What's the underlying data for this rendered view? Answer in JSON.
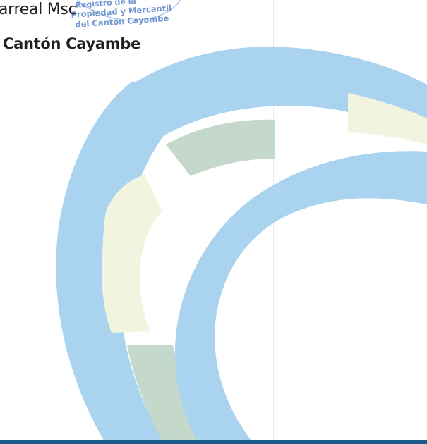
{
  "signature_block": {
    "name_fragment": "arreal Msc",
    "title": "Cantón Cayambe"
  },
  "stamp": {
    "line1": "Registro de la",
    "line2": "Propiedad y Mercantil",
    "line3": "del Cantón Cayambe"
  },
  "colors": {
    "arc_blue": "#a9d3ee",
    "arc_gray_green": "#c5d8cc",
    "arc_pale_yellow": "#f1f5df",
    "stamp_blue": "#5a86c8",
    "footer_bar": "#1a5a8c",
    "text": "#1f1f1f"
  }
}
